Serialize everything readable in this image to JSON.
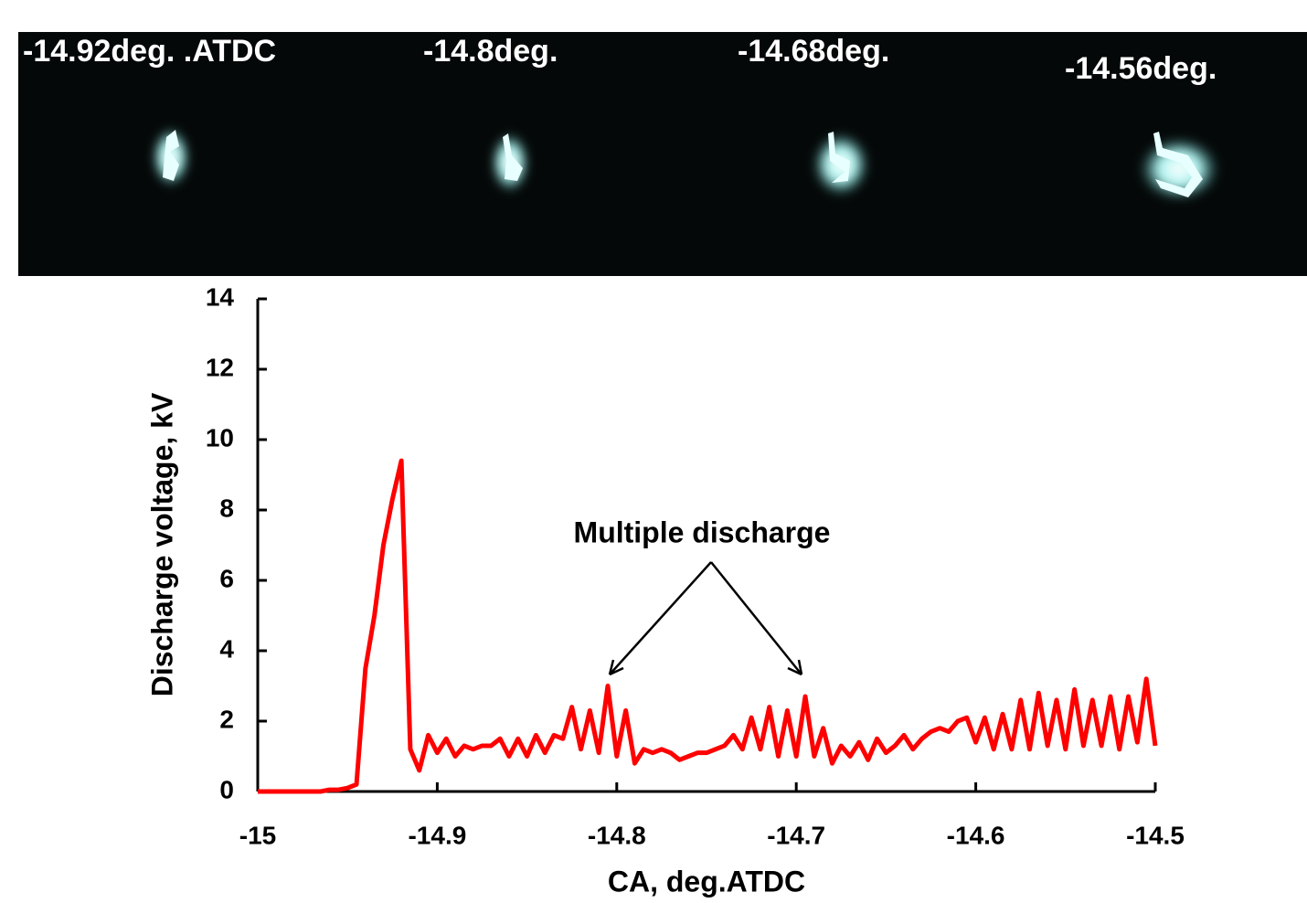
{
  "photo_strip": {
    "labels": [
      "-14.92deg. .ATDC",
      "-14.8deg.",
      "-14.68deg.",
      "-14.56deg."
    ]
  },
  "chart_data": {
    "type": "line",
    "xlabel": "CA, deg.ATDC",
    "ylabel": "Discharge voltage, kV",
    "annotation": "Multiple discharge",
    "xlim": [
      -15,
      -14.5
    ],
    "xticks": [
      -15,
      -14.9,
      -14.8,
      -14.7,
      -14.6,
      -14.5
    ],
    "ylim": [
      0,
      14
    ],
    "yticks": [
      0,
      2,
      4,
      6,
      8,
      10,
      12,
      14
    ],
    "x": [
      -15,
      -14.995,
      -14.99,
      -14.985,
      -14.98,
      -14.975,
      -14.97,
      -14.965,
      -14.96,
      -14.955,
      -14.95,
      -14.945,
      -14.94,
      -14.935,
      -14.93,
      -14.925,
      -14.92,
      -14.915,
      -14.91,
      -14.905,
      -14.9,
      -14.895,
      -14.89,
      -14.885,
      -14.88,
      -14.875,
      -14.87,
      -14.865,
      -14.86,
      -14.855,
      -14.85,
      -14.845,
      -14.84,
      -14.835,
      -14.83,
      -14.825,
      -14.82,
      -14.815,
      -14.81,
      -14.805,
      -14.8,
      -14.795,
      -14.79,
      -14.785,
      -14.78,
      -14.775,
      -14.77,
      -14.765,
      -14.76,
      -14.755,
      -14.75,
      -14.745,
      -14.74,
      -14.735,
      -14.73,
      -14.725,
      -14.72,
      -14.715,
      -14.71,
      -14.705,
      -14.7,
      -14.695,
      -14.69,
      -14.685,
      -14.68,
      -14.675,
      -14.67,
      -14.665,
      -14.66,
      -14.655,
      -14.65,
      -14.645,
      -14.64,
      -14.635,
      -14.63,
      -14.625,
      -14.62,
      -14.615,
      -14.61,
      -14.605,
      -14.6,
      -14.595,
      -14.59,
      -14.585,
      -14.58,
      -14.575,
      -14.57,
      -14.565,
      -14.56,
      -14.555,
      -14.55,
      -14.545,
      -14.54,
      -14.535,
      -14.53,
      -14.525,
      -14.52,
      -14.515,
      -14.51,
      -14.505,
      -14.5
    ],
    "series": [
      {
        "color": "#ff0000",
        "values": [
          0,
          0,
          0,
          0,
          0,
          0,
          0,
          0,
          0.05,
          0.05,
          0.1,
          0.2,
          3.5,
          5,
          7,
          8.3,
          9.4,
          1.2,
          0.6,
          1.6,
          1.1,
          1.5,
          1.0,
          1.3,
          1.2,
          1.3,
          1.3,
          1.5,
          1.0,
          1.5,
          1.0,
          1.6,
          1.1,
          1.6,
          1.5,
          2.4,
          1.2,
          2.3,
          1.1,
          3.0,
          1.0,
          2.3,
          0.8,
          1.2,
          1.1,
          1.2,
          1.1,
          0.9,
          1.0,
          1.1,
          1.1,
          1.2,
          1.3,
          1.6,
          1.2,
          2.1,
          1.2,
          2.4,
          1.0,
          2.3,
          1.0,
          2.7,
          1.0,
          1.8,
          0.8,
          1.3,
          1.0,
          1.4,
          0.9,
          1.5,
          1.1,
          1.3,
          1.6,
          1.2,
          1.5,
          1.7,
          1.8,
          1.7,
          2.0,
          2.1,
          1.4,
          2.1,
          1.2,
          2.2,
          1.2,
          2.6,
          1.2,
          2.8,
          1.3,
          2.6,
          1.2,
          2.9,
          1.3,
          2.6,
          1.3,
          2.7,
          1.2,
          2.7,
          1.4,
          3.2,
          1.3
        ]
      }
    ]
  }
}
